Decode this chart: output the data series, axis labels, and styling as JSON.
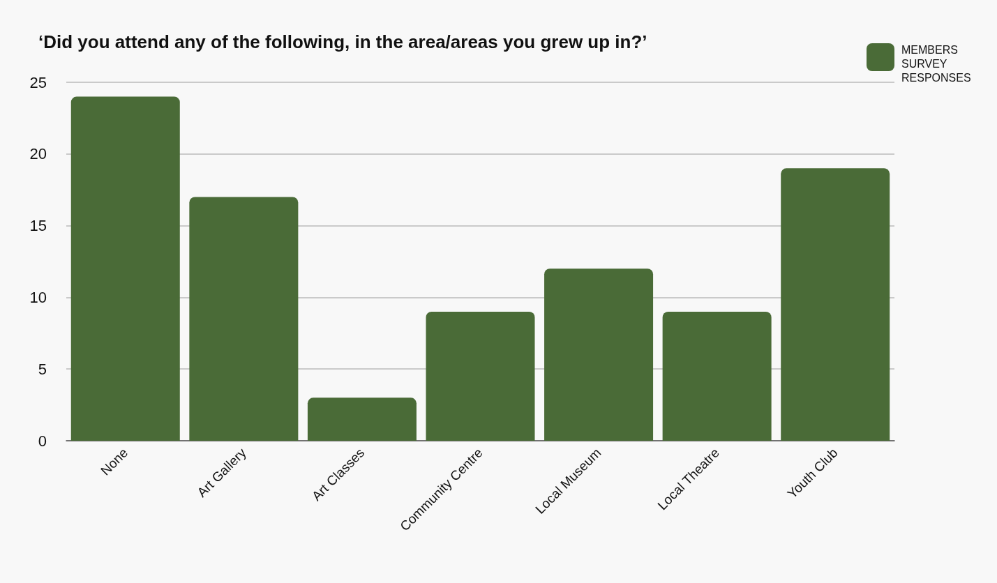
{
  "chart_data": {
    "type": "bar",
    "title": "‘Did you attend any of the following, in the area/areas you grew up in?’",
    "categories": [
      "None",
      "Art Gallery",
      "Art Classes",
      "Community Centre",
      "Local Museum",
      "Local Theatre",
      "Youth Club"
    ],
    "series": [
      {
        "name": "MEMBERS SURVEY RESPONSES",
        "color": "#4a6b37",
        "values": [
          24,
          17,
          3,
          9,
          12,
          9,
          19
        ]
      }
    ],
    "ylim": [
      0,
      25
    ],
    "yticks": [
      0,
      5,
      10,
      15,
      20,
      25
    ],
    "grid": "y",
    "legend": "top right"
  }
}
